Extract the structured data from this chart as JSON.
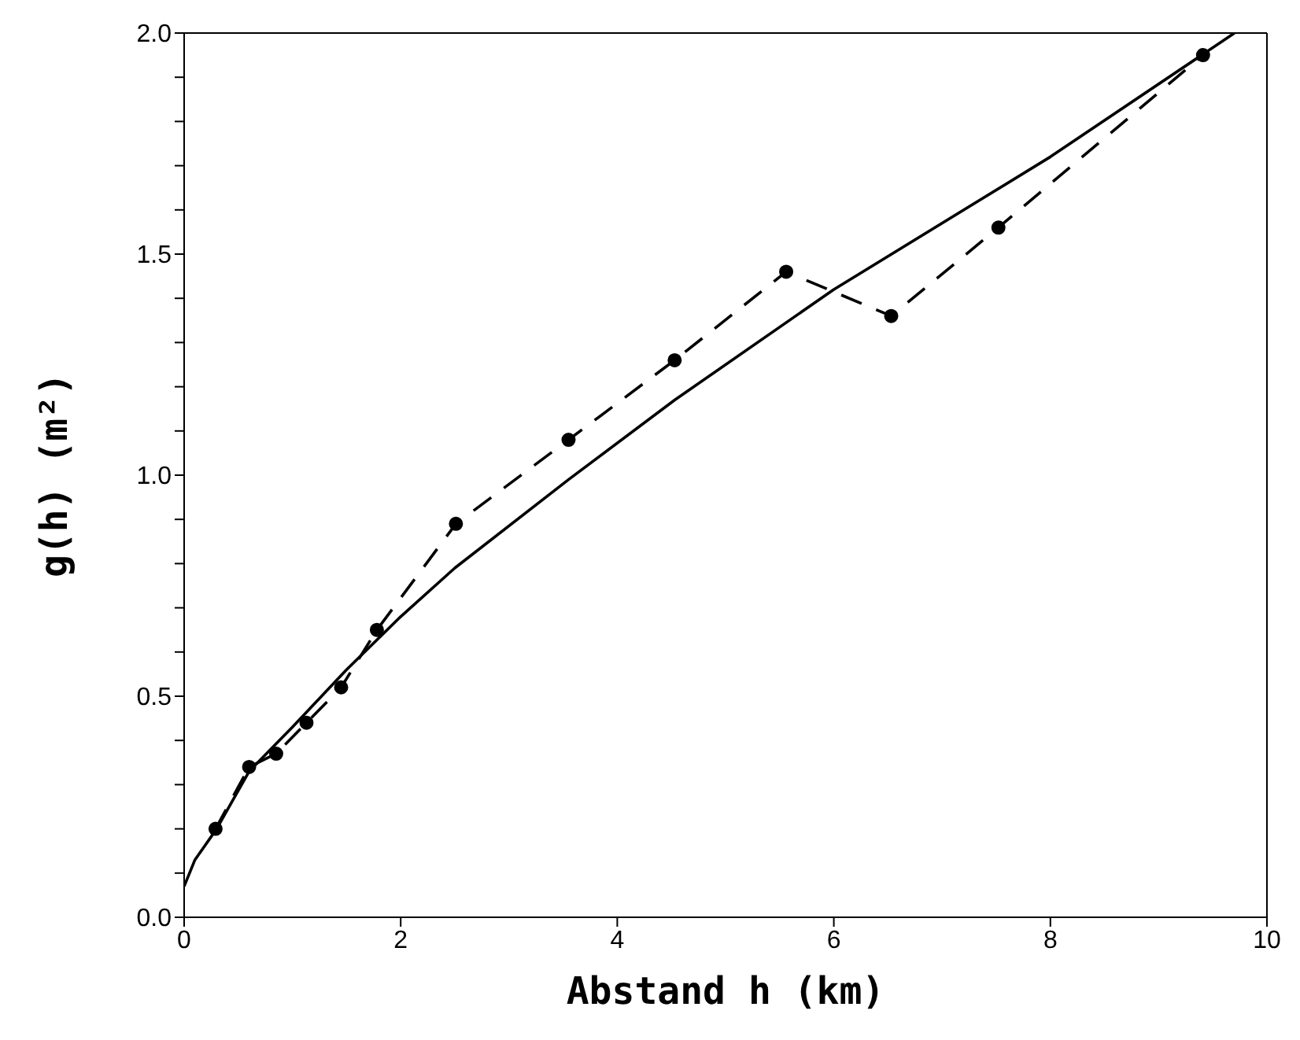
{
  "chart_data": {
    "type": "line",
    "xlabel": "Abstand h (km)",
    "ylabel": "g(h) (m²)",
    "xlim": [
      0,
      10
    ],
    "xticks": [
      0,
      2,
      4,
      6,
      8,
      10
    ],
    "ylim": [
      0,
      2.0
    ],
    "yticks": [
      {
        "value": 0,
        "label": "0.0"
      },
      {
        "value": 0.1,
        "label": null
      },
      {
        "value": 0.2,
        "label": null
      },
      {
        "value": 0.3,
        "label": null
      },
      {
        "value": 0.4,
        "label": null
      },
      {
        "value": 0.5,
        "label": "0.5"
      },
      {
        "value": 0.6,
        "label": null
      },
      {
        "value": 0.7,
        "label": null
      },
      {
        "value": 0.8,
        "label": null
      },
      {
        "value": 0.9,
        "label": null
      },
      {
        "value": 1.0,
        "label": "1.0"
      },
      {
        "value": 1.1,
        "label": null
      },
      {
        "value": 1.2,
        "label": null
      },
      {
        "value": 1.3,
        "label": null
      },
      {
        "value": 1.4,
        "label": null
      },
      {
        "value": 1.5,
        "label": "1.5"
      },
      {
        "value": 1.6,
        "label": null
      },
      {
        "value": 1.7,
        "label": null
      },
      {
        "value": 1.8,
        "label": null
      },
      {
        "value": 1.9,
        "label": null
      },
      {
        "value": 2.0,
        "label": "2.0"
      }
    ],
    "grid": false,
    "series": [
      {
        "color": "#000000",
        "marker": "circle",
        "line_style": "dashed",
        "x": [
          0.29,
          0.6,
          0.85,
          1.13,
          1.45,
          1.78,
          2.51,
          3.55,
          4.53,
          5.56,
          6.53,
          7.52,
          9.41
        ],
        "values": [
          0.2,
          0.34,
          0.37,
          0.44,
          0.52,
          0.65,
          0.89,
          1.08,
          1.26,
          1.46,
          1.36,
          1.56,
          1.95
        ]
      },
      {
        "color": "#000000",
        "marker": "none",
        "line_style": "solid",
        "x": [
          0,
          0.1,
          0.3,
          0.6,
          1,
          1.5,
          2,
          2.5,
          3.55,
          4.53,
          6,
          8,
          9.7
        ],
        "values": [
          0.07,
          0.13,
          0.2,
          0.33,
          0.43,
          0.56,
          0.68,
          0.79,
          0.99,
          1.17,
          1.42,
          1.72,
          2.0
        ]
      }
    ]
  }
}
